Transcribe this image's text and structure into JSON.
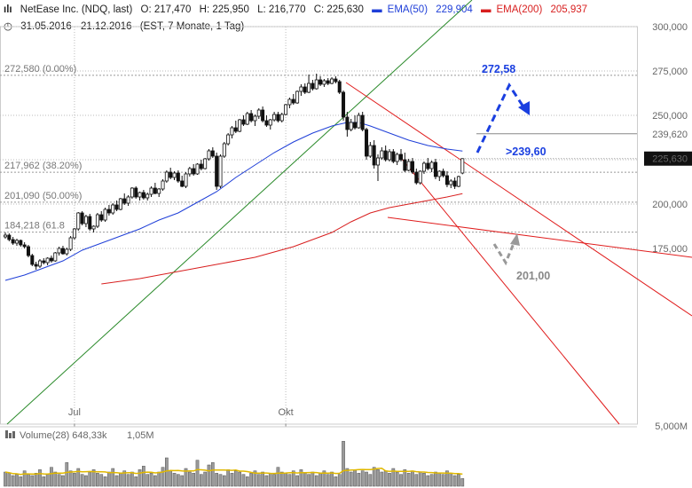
{
  "header": {
    "title": "NetEase Inc. (NDQ, last)",
    "open": "O: 217,470",
    "high": "H: 225,950",
    "low": "L: 216,770",
    "close": "C: 225,630",
    "ema50_label": "EMA(50)",
    "ema50_value": "229,904",
    "ema200_label": "EMA(200)",
    "ema200_value": "205,937",
    "range": "31.05.2016 - 21.12.2016",
    "meta": "(EST, 7 Monate, 1 Tag)"
  },
  "volume": {
    "label": "Volume(28)",
    "value": "648,33k",
    "avg": "1,05M"
  },
  "colors": {
    "ema50": "#1f3fd8",
    "ema200": "#d81f1f",
    "trend_green": "#2a8a2a",
    "trend_red": "#e01c1c",
    "annot_blue": "#1a3fe0",
    "annot_gray": "#999999"
  },
  "chart_data": {
    "type": "candlestick",
    "x_labels": [
      "Jul",
      "Okt"
    ],
    "y_ticks": [
      "300,000",
      "275,000",
      "250,000",
      "225,000",
      "200,000",
      "175,000",
      "5,000M"
    ],
    "ylim": [
      156,
      302
    ],
    "grid": true,
    "fib_levels": [
      {
        "label": "272,580 (0.00%)",
        "value": 272.58
      },
      {
        "label": "217,962 (38.20%)",
        "value": 217.962
      },
      {
        "label": "201,090 (50.00%)",
        "value": 201.09
      },
      {
        "label": "184,218 (61.8",
        "value": 184.218
      }
    ],
    "resistance": {
      "label": "239,620",
      "value": 239.62
    },
    "last_price": {
      "label": "225,630",
      "value": 225.63
    },
    "annotations": [
      {
        "text": "272,58",
        "color": "blue"
      },
      {
        "text": ">239,60",
        "color": "blue"
      },
      {
        "text": "201,00",
        "color": "gray"
      }
    ],
    "ohlc": [
      [
        181.5,
        184.0,
        180.5,
        182.5
      ],
      [
        182.5,
        183.5,
        179.0,
        180.0
      ],
      [
        180.0,
        181.5,
        177.0,
        178.0
      ],
      [
        178.0,
        180.5,
        176.5,
        179.5
      ],
      [
        179.5,
        180.0,
        176.0,
        177.0
      ],
      [
        177.0,
        178.5,
        175.0,
        176.0
      ],
      [
        176.0,
        177.0,
        170.0,
        171.0
      ],
      [
        171.0,
        172.0,
        165.0,
        166.0
      ],
      [
        166.0,
        167.5,
        163.0,
        165.0
      ],
      [
        165.0,
        169.0,
        164.0,
        168.0
      ],
      [
        168.0,
        169.5,
        166.0,
        167.0
      ],
      [
        167.0,
        170.0,
        165.5,
        169.5
      ],
      [
        169.5,
        171.0,
        167.0,
        168.0
      ],
      [
        168.0,
        173.0,
        167.5,
        172.5
      ],
      [
        172.5,
        176.0,
        171.0,
        175.0
      ],
      [
        175.0,
        176.5,
        171.5,
        172.0
      ],
      [
        172.0,
        175.5,
        171.0,
        174.5
      ],
      [
        174.5,
        182.0,
        173.5,
        181.0
      ],
      [
        181.0,
        186.5,
        180.0,
        186.0
      ],
      [
        186.0,
        195.5,
        185.0,
        195.0
      ],
      [
        195.0,
        196.0,
        188.0,
        189.0
      ],
      [
        189.0,
        194.0,
        187.0,
        193.0
      ],
      [
        193.0,
        194.5,
        185.0,
        186.0
      ],
      [
        186.0,
        188.0,
        184.0,
        187.5
      ],
      [
        187.5,
        195.0,
        186.5,
        194.0
      ],
      [
        194.0,
        196.0,
        190.0,
        191.0
      ],
      [
        191.0,
        198.0,
        190.0,
        197.0
      ],
      [
        197.0,
        199.5,
        193.5,
        195.0
      ],
      [
        195.0,
        200.5,
        194.0,
        199.5
      ],
      [
        199.5,
        202.0,
        196.0,
        197.0
      ],
      [
        197.0,
        203.5,
        196.5,
        203.0
      ],
      [
        203.0,
        206.0,
        199.5,
        200.5
      ],
      [
        200.5,
        205.0,
        199.0,
        204.0
      ],
      [
        204.0,
        209.5,
        203.0,
        209.0
      ],
      [
        209.0,
        210.0,
        203.0,
        204.0
      ],
      [
        204.0,
        207.0,
        202.0,
        206.5
      ],
      [
        206.5,
        208.0,
        202.5,
        203.5
      ],
      [
        203.5,
        206.5,
        202.0,
        205.5
      ],
      [
        205.5,
        210.0,
        204.0,
        209.0
      ],
      [
        209.0,
        212.0,
        205.5,
        206.0
      ],
      [
        206.0,
        209.0,
        204.0,
        208.5
      ],
      [
        208.5,
        214.0,
        207.5,
        213.0
      ],
      [
        213.0,
        219.0,
        212.0,
        218.0
      ],
      [
        218.0,
        220.5,
        214.0,
        215.0
      ],
      [
        215.0,
        218.5,
        213.5,
        217.5
      ],
      [
        217.5,
        219.0,
        212.0,
        213.0
      ],
      [
        213.0,
        216.0,
        209.5,
        210.0
      ],
      [
        210.0,
        218.0,
        209.0,
        217.0
      ],
      [
        217.0,
        221.0,
        215.5,
        220.0
      ],
      [
        220.0,
        222.5,
        216.0,
        217.0
      ],
      [
        217.0,
        223.0,
        216.5,
        222.5
      ],
      [
        222.5,
        225.0,
        219.0,
        220.0
      ],
      [
        220.0,
        226.0,
        219.5,
        225.5
      ],
      [
        225.5,
        231.0,
        224.5,
        230.0
      ],
      [
        230.0,
        232.0,
        226.0,
        227.0
      ],
      [
        227.0,
        229.0,
        208.0,
        210.0
      ],
      [
        210.0,
        228.0,
        209.0,
        227.0
      ],
      [
        227.0,
        235.0,
        226.0,
        234.0
      ],
      [
        234.0,
        240.0,
        233.0,
        239.0
      ],
      [
        239.0,
        244.0,
        237.0,
        243.0
      ],
      [
        243.0,
        247.0,
        240.0,
        241.0
      ],
      [
        241.0,
        248.0,
        240.5,
        247.5
      ],
      [
        247.5,
        250.0,
        244.0,
        245.0
      ],
      [
        245.0,
        252.0,
        244.5,
        251.0
      ],
      [
        251.0,
        253.0,
        246.0,
        247.0
      ],
      [
        247.0,
        250.5,
        244.0,
        249.5
      ],
      [
        249.5,
        254.0,
        248.0,
        253.0
      ],
      [
        253.0,
        255.0,
        246.0,
        247.0
      ],
      [
        247.0,
        250.0,
        243.5,
        244.5
      ],
      [
        244.5,
        248.0,
        242.0,
        247.5
      ],
      [
        247.5,
        252.0,
        246.5,
        250.5
      ],
      [
        250.5,
        252.0,
        246.0,
        247.0
      ],
      [
        247.0,
        251.5,
        246.0,
        250.5
      ],
      [
        250.5,
        256.5,
        250.0,
        256.0
      ],
      [
        256.0,
        260.0,
        254.0,
        259.0
      ],
      [
        259.0,
        262.0,
        256.0,
        257.0
      ],
      [
        257.0,
        264.0,
        256.5,
        263.5
      ],
      [
        263.5,
        267.5,
        261.0,
        266.0
      ],
      [
        266.0,
        268.0,
        262.0,
        263.0
      ],
      [
        263.0,
        273.0,
        262.5,
        268.0
      ],
      [
        268.0,
        270.0,
        264.0,
        265.0
      ],
      [
        265.0,
        273.5,
        264.5,
        270.0
      ],
      [
        270.0,
        272.0,
        266.5,
        267.5
      ],
      [
        267.5,
        270.5,
        266.0,
        269.5
      ],
      [
        269.5,
        271.0,
        267.0,
        268.0
      ],
      [
        268.0,
        271.5,
        267.5,
        270.5
      ],
      [
        270.5,
        272.0,
        268.0,
        269.0
      ],
      [
        269.0,
        270.0,
        262.0,
        263.0
      ],
      [
        263.0,
        264.0,
        247.0,
        249.0
      ],
      [
        249.0,
        252.0,
        238.0,
        242.0
      ],
      [
        242.0,
        248.0,
        241.0,
        246.0
      ],
      [
        246.0,
        250.0,
        242.0,
        243.0
      ],
      [
        243.0,
        251.5,
        242.5,
        250.0
      ],
      [
        250.0,
        252.0,
        241.0,
        242.0
      ],
      [
        242.0,
        243.0,
        225.0,
        227.0
      ],
      [
        227.0,
        235.0,
        226.0,
        233.0
      ],
      [
        233.0,
        236.0,
        220.0,
        222.0
      ],
      [
        222.0,
        228.0,
        213.0,
        226.0
      ],
      [
        226.0,
        232.0,
        225.0,
        230.0
      ],
      [
        230.0,
        233.0,
        224.0,
        225.0
      ],
      [
        225.0,
        231.0,
        224.0,
        229.5
      ],
      [
        229.5,
        231.0,
        223.0,
        224.0
      ],
      [
        224.0,
        229.0,
        222.0,
        228.0
      ],
      [
        228.0,
        231.0,
        224.0,
        225.0
      ],
      [
        225.0,
        229.0,
        218.0,
        219.0
      ],
      [
        219.0,
        225.5,
        218.5,
        224.0
      ],
      [
        224.0,
        226.0,
        217.0,
        218.0
      ],
      [
        218.0,
        220.0,
        211.0,
        212.0
      ],
      [
        212.0,
        219.0,
        211.0,
        218.5
      ],
      [
        218.5,
        224.0,
        217.0,
        223.0
      ],
      [
        223.0,
        226.0,
        219.0,
        220.0
      ],
      [
        220.0,
        224.5,
        218.0,
        223.5
      ],
      [
        223.5,
        225.5,
        214.0,
        215.5
      ],
      [
        215.5,
        219.0,
        213.0,
        218.5
      ],
      [
        218.5,
        220.0,
        215.0,
        216.0
      ],
      [
        216.0,
        218.5,
        209.5,
        211.0
      ],
      [
        211.0,
        214.0,
        209.0,
        213.0
      ],
      [
        213.0,
        215.0,
        208.5,
        210.0
      ],
      [
        210.0,
        216.0,
        209.5,
        215.5
      ],
      [
        217.5,
        226.0,
        216.8,
        225.6
      ]
    ],
    "volume": [
      1.2,
      1.1,
      0.9,
      1.0,
      0.8,
      1.3,
      1.0,
      0.9,
      1.1,
      1.4,
      0.8,
      1.0,
      1.6,
      1.2,
      1.0,
      0.9,
      2.0,
      1.3,
      1.1,
      1.5,
      1.0,
      0.9,
      1.2,
      1.4,
      1.1,
      1.0,
      0.8,
      1.2,
      1.5,
      0.9,
      1.1,
      1.3,
      1.0,
      1.2,
      0.8,
      1.4,
      1.7,
      1.0,
      1.1,
      0.9,
      1.2,
      1.6,
      2.4,
      1.3,
      1.1,
      1.0,
      0.9,
      1.5,
      1.2,
      1.1,
      2.2,
      1.0,
      1.2,
      1.8,
      2.0,
      1.1,
      1.0,
      0.9,
      1.4,
      1.1,
      1.3,
      1.2,
      1.0,
      0.8,
      1.1,
      1.3,
      1.0,
      1.2,
      0.9,
      1.1,
      1.0,
      1.6,
      1.2,
      1.1,
      1.0,
      1.3,
      0.9,
      1.4,
      1.1,
      1.0,
      1.2,
      0.9,
      1.1,
      1.3,
      1.0,
      1.2,
      0.8,
      1.0,
      3.8,
      1.5,
      1.2,
      1.4,
      1.1,
      1.3,
      1.2,
      1.0,
      1.6,
      1.4,
      1.2,
      1.3,
      1.1,
      1.5,
      1.2,
      1.0,
      1.4,
      1.1,
      1.3,
      1.0,
      1.2,
      1.1,
      0.9,
      1.0,
      1.2,
      1.1,
      1.0,
      1.3,
      1.1,
      0.9,
      1.0,
      0.65
    ],
    "ema50": [
      [
        0,
        157
      ],
      [
        5,
        160
      ],
      [
        10,
        164
      ],
      [
        15,
        168
      ],
      [
        20,
        174
      ],
      [
        25,
        178
      ],
      [
        30,
        182
      ],
      [
        35,
        186
      ],
      [
        40,
        191
      ],
      [
        45,
        195
      ],
      [
        50,
        201
      ],
      [
        55,
        207
      ],
      [
        60,
        215
      ],
      [
        65,
        222
      ],
      [
        70,
        229
      ],
      [
        75,
        235
      ],
      [
        80,
        240
      ],
      [
        85,
        244
      ],
      [
        89,
        246
      ],
      [
        92,
        246
      ],
      [
        95,
        244
      ],
      [
        100,
        240
      ],
      [
        105,
        236
      ],
      [
        110,
        233
      ],
      [
        115,
        231
      ],
      [
        119,
        229.9
      ]
    ],
    "ema200": [
      [
        25,
        155
      ],
      [
        35,
        158
      ],
      [
        45,
        162
      ],
      [
        55,
        166
      ],
      [
        65,
        170
      ],
      [
        75,
        176
      ],
      [
        85,
        184
      ],
      [
        90,
        190
      ],
      [
        95,
        195
      ],
      [
        100,
        198
      ],
      [
        105,
        200
      ],
      [
        110,
        202
      ],
      [
        115,
        204
      ],
      [
        119,
        205.9
      ]
    ]
  }
}
